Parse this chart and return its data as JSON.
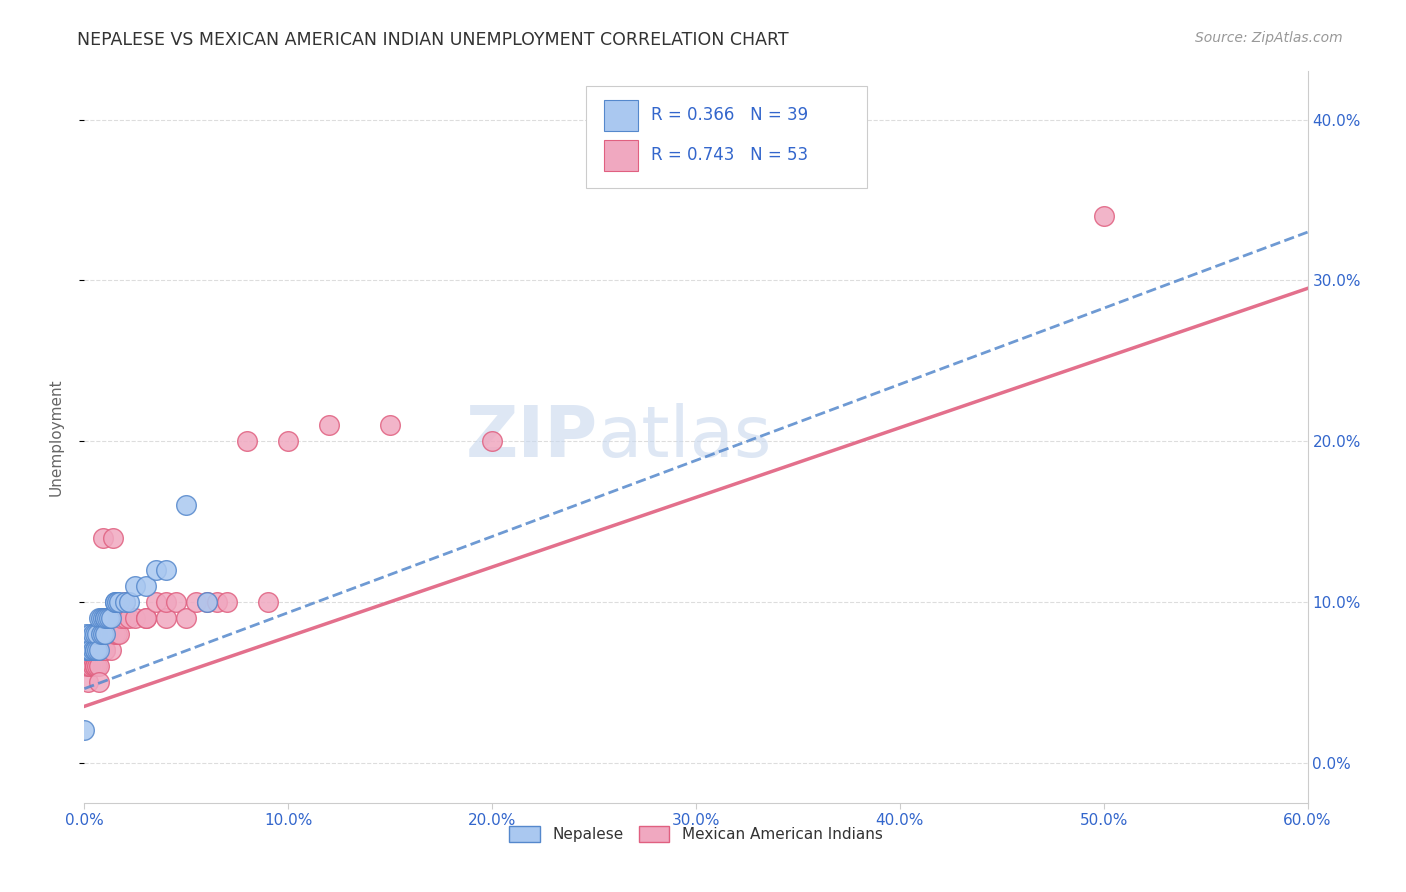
{
  "title": "NEPALESE VS MEXICAN AMERICAN INDIAN UNEMPLOYMENT CORRELATION CHART",
  "source": "Source: ZipAtlas.com",
  "ylabel": "Unemployment",
  "nepalese_R": 0.366,
  "nepalese_N": 39,
  "mexican_R": 0.743,
  "mexican_N": 53,
  "nepalese_color": "#aac8f0",
  "mexican_color": "#f0a8c0",
  "nepalese_line_color": "#5588cc",
  "mexican_line_color": "#e06080",
  "stat_color": "#3366cc",
  "watermark_color": "#c8d8ee",
  "xmin": 0.0,
  "xmax": 0.6,
  "ymin": -0.025,
  "ymax": 0.43,
  "x_ticks": [
    0.0,
    0.1,
    0.2,
    0.3,
    0.4,
    0.5,
    0.6
  ],
  "x_labels": [
    "0.0%",
    "10.0%",
    "20.0%",
    "30.0%",
    "40.0%",
    "50.0%",
    "60.0%"
  ],
  "y_ticks": [
    0.0,
    0.1,
    0.2,
    0.3,
    0.4
  ],
  "y_labels": [
    "0.0%",
    "10.0%",
    "20.0%",
    "30.0%",
    "40.0%"
  ],
  "nep_x": [
    0.0,
    0.001,
    0.001,
    0.002,
    0.002,
    0.003,
    0.003,
    0.003,
    0.004,
    0.004,
    0.005,
    0.005,
    0.005,
    0.006,
    0.006,
    0.007,
    0.007,
    0.008,
    0.008,
    0.009,
    0.009,
    0.01,
    0.01,
    0.01,
    0.011,
    0.012,
    0.013,
    0.015,
    0.015,
    0.016,
    0.017,
    0.02,
    0.022,
    0.025,
    0.03,
    0.035,
    0.04,
    0.05,
    0.06
  ],
  "nep_y": [
    0.02,
    0.07,
    0.08,
    0.07,
    0.07,
    0.07,
    0.08,
    0.07,
    0.07,
    0.08,
    0.07,
    0.07,
    0.08,
    0.07,
    0.08,
    0.07,
    0.09,
    0.08,
    0.09,
    0.08,
    0.09,
    0.09,
    0.08,
    0.09,
    0.09,
    0.09,
    0.09,
    0.1,
    0.1,
    0.1,
    0.1,
    0.1,
    0.1,
    0.11,
    0.11,
    0.12,
    0.12,
    0.16,
    0.1
  ],
  "mex_x": [
    0.0,
    0.001,
    0.001,
    0.002,
    0.002,
    0.003,
    0.003,
    0.004,
    0.004,
    0.005,
    0.005,
    0.005,
    0.006,
    0.006,
    0.007,
    0.007,
    0.008,
    0.008,
    0.009,
    0.009,
    0.01,
    0.01,
    0.01,
    0.011,
    0.012,
    0.013,
    0.014,
    0.015,
    0.016,
    0.017,
    0.018,
    0.02,
    0.02,
    0.022,
    0.025,
    0.03,
    0.03,
    0.035,
    0.04,
    0.04,
    0.045,
    0.05,
    0.055,
    0.06,
    0.065,
    0.07,
    0.08,
    0.09,
    0.1,
    0.12,
    0.15,
    0.2,
    0.5
  ],
  "mex_y": [
    0.06,
    0.06,
    0.07,
    0.05,
    0.06,
    0.06,
    0.07,
    0.06,
    0.07,
    0.06,
    0.06,
    0.07,
    0.06,
    0.07,
    0.06,
    0.05,
    0.07,
    0.08,
    0.07,
    0.14,
    0.07,
    0.08,
    0.07,
    0.08,
    0.08,
    0.07,
    0.14,
    0.08,
    0.08,
    0.08,
    0.09,
    0.09,
    0.1,
    0.09,
    0.09,
    0.09,
    0.09,
    0.1,
    0.09,
    0.1,
    0.1,
    0.09,
    0.1,
    0.1,
    0.1,
    0.1,
    0.2,
    0.1,
    0.2,
    0.21,
    0.21,
    0.2,
    0.34
  ],
  "nep_line_x0": 0.0,
  "nep_line_x1": 0.6,
  "nep_line_y0": 0.046,
  "nep_line_y1": 0.33,
  "mex_line_x0": 0.0,
  "mex_line_x1": 0.6,
  "mex_line_y0": 0.035,
  "mex_line_y1": 0.295
}
